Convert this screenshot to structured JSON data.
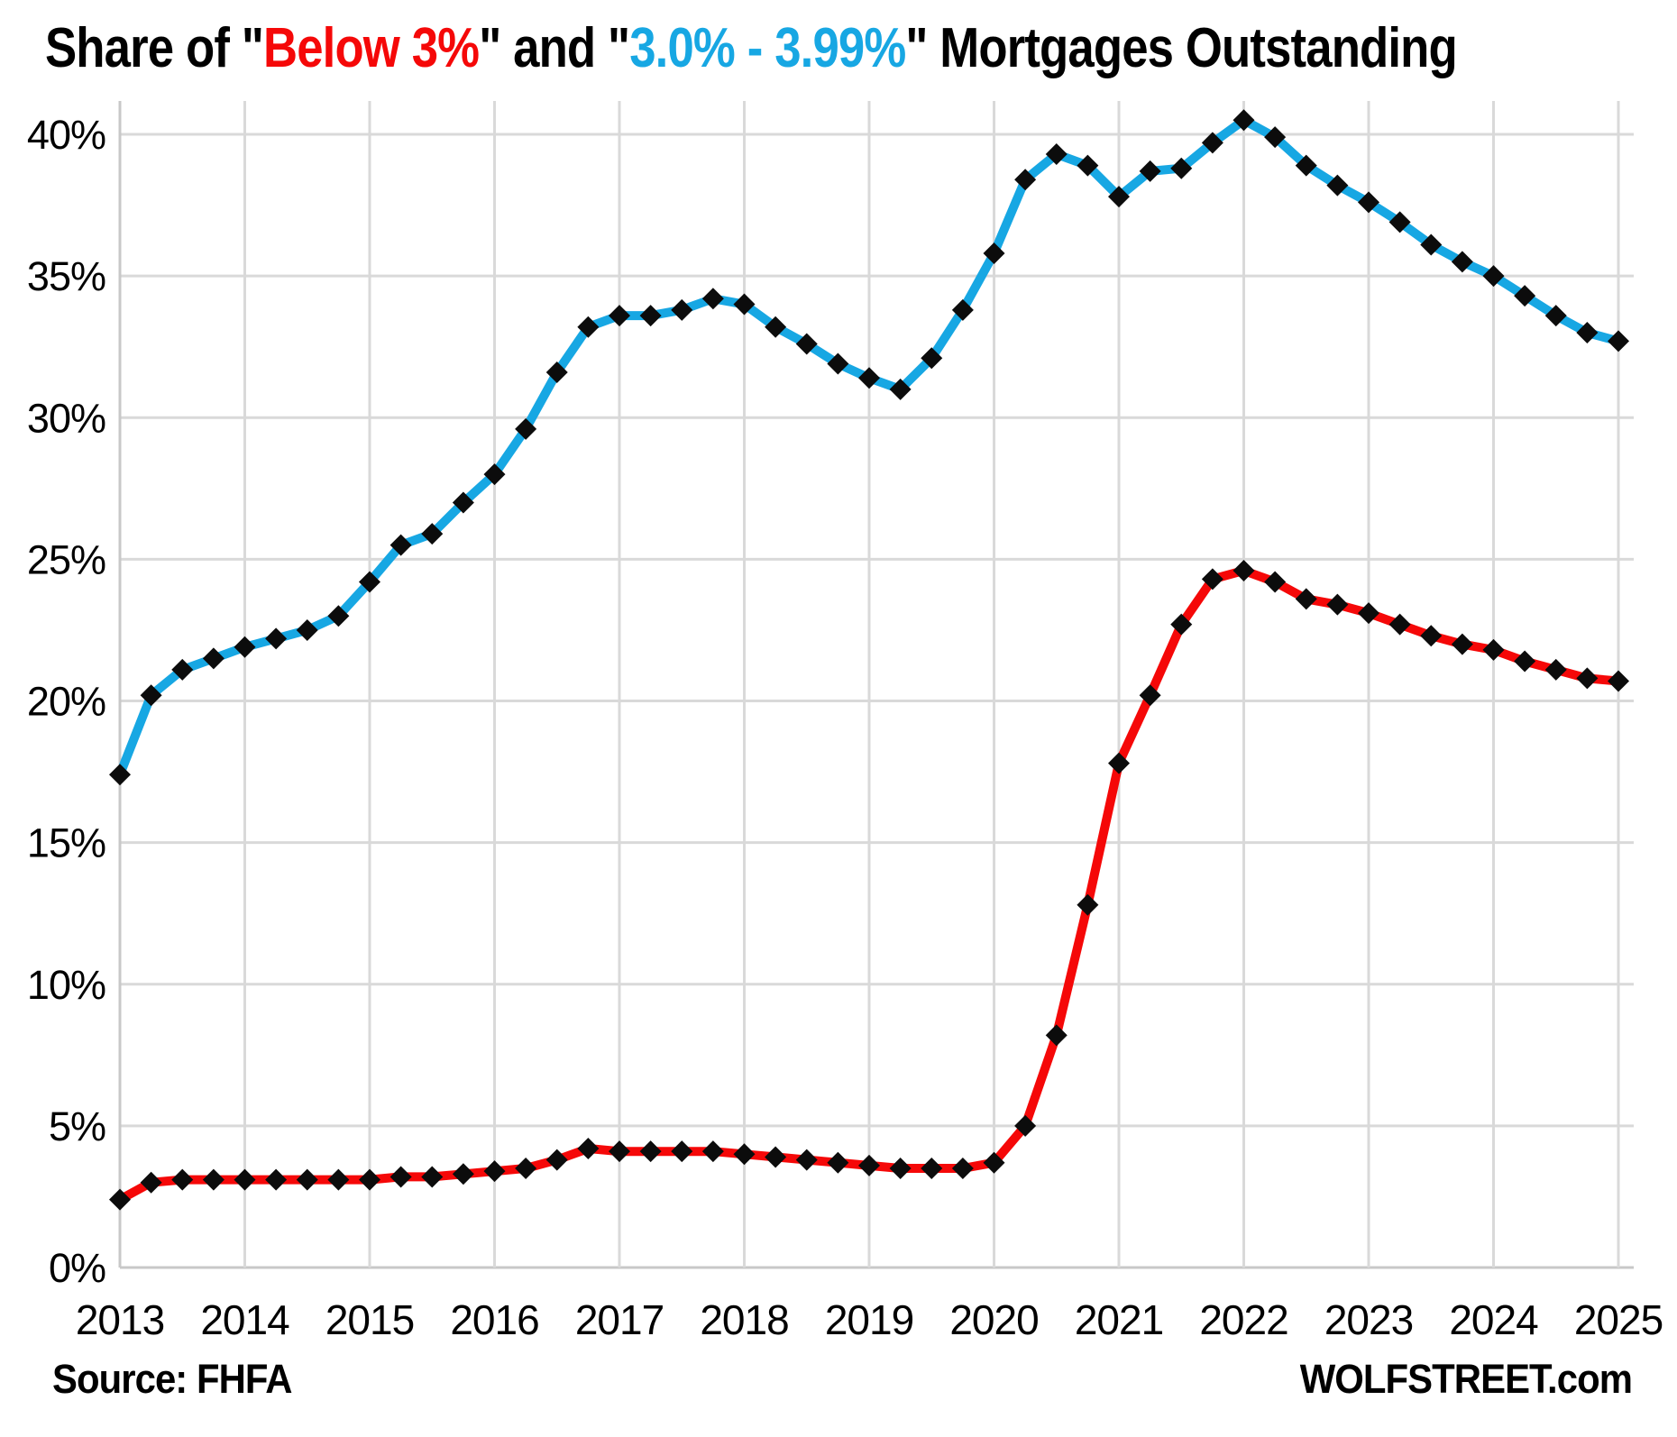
{
  "title": {
    "full_text": "Share of \"Below 3%\" and \"3.0% - 3.99%\" Mortgages Outstanding",
    "parts": [
      {
        "text": "Share of \"",
        "color": "#000000"
      },
      {
        "text": "Below 3%",
        "color": "#f50808"
      },
      {
        "text": "\" and \"",
        "color": "#000000"
      },
      {
        "text": "3.0% - 3.99%",
        "color": "#17a7e3"
      },
      {
        "text": "\" Mortgages Outstanding",
        "color": "#000000"
      }
    ]
  },
  "footer": {
    "source": "Source: FHFA",
    "brand": "WOLFSTREET.com"
  },
  "chart_data": {
    "type": "line",
    "title": "Share of \"Below 3%\" and \"3.0% - 3.99%\" Mortgages Outstanding",
    "x_frequency": "quarterly",
    "x_first": "2013-Q1",
    "x_last": "2025-Q1",
    "x_tick_labels": [
      "2013",
      "2014",
      "2015",
      "2016",
      "2017",
      "2018",
      "2019",
      "2020",
      "2021",
      "2022",
      "2023",
      "2024",
      "2025"
    ],
    "y_tick_labels": [
      "0%",
      "5%",
      "10%",
      "15%",
      "20%",
      "25%",
      "30%",
      "35%",
      "40%"
    ],
    "y_tick_values": [
      0,
      5,
      10,
      15,
      20,
      25,
      30,
      35,
      40
    ],
    "ylim": [
      0,
      40
    ],
    "grid": true,
    "legend": "in-title",
    "marker": "black-diamond",
    "marker_color": "#0c0c0c",
    "grid_color": "#d9d9d9",
    "axis_color": "#c8c8c8",
    "series": [
      {
        "name": "3.0% - 3.99%",
        "color": "#17a7e3",
        "values": [
          17.4,
          20.2,
          21.1,
          21.5,
          21.9,
          22.2,
          22.5,
          23.0,
          24.2,
          25.5,
          25.9,
          27.0,
          28.0,
          29.6,
          31.6,
          33.2,
          33.6,
          33.6,
          33.8,
          34.2,
          34.0,
          33.2,
          32.6,
          31.9,
          31.4,
          31.0,
          32.1,
          33.8,
          35.8,
          38.4,
          39.3,
          38.9,
          37.8,
          38.7,
          38.8,
          39.7,
          40.5,
          39.9,
          38.9,
          38.2,
          37.6,
          36.9,
          36.1,
          35.5,
          35.0,
          34.3,
          33.6,
          33.0,
          32.7
        ]
      },
      {
        "name": "Below 3%",
        "color": "#f50808",
        "values": [
          2.4,
          3.0,
          3.1,
          3.1,
          3.1,
          3.1,
          3.1,
          3.1,
          3.1,
          3.2,
          3.2,
          3.3,
          3.4,
          3.5,
          3.8,
          4.2,
          4.1,
          4.1,
          4.1,
          4.1,
          4.0,
          3.9,
          3.8,
          3.7,
          3.6,
          3.5,
          3.5,
          3.5,
          3.7,
          5.0,
          8.2,
          12.8,
          17.8,
          20.2,
          22.7,
          24.3,
          24.6,
          24.2,
          23.6,
          23.4,
          23.1,
          22.7,
          22.3,
          22.0,
          21.8,
          21.4,
          21.1,
          20.8,
          20.7
        ]
      }
    ]
  }
}
